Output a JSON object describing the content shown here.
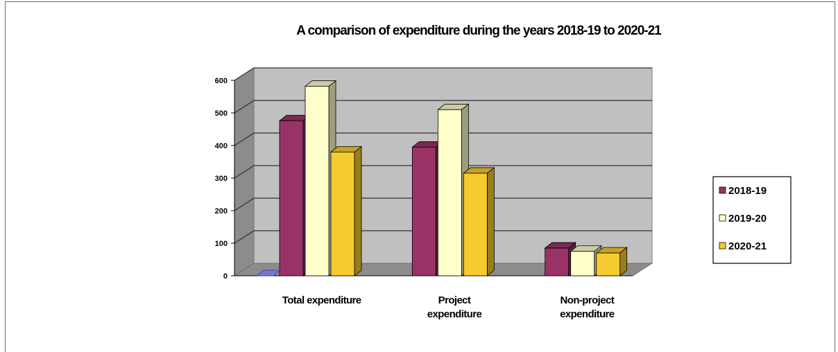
{
  "chart_data": {
    "type": "bar",
    "title": "A comparison of expenditure during the years 2018-19 to 2020-21",
    "categories": [
      [
        "Total expenditure"
      ],
      [
        "Project",
        "expenditure"
      ],
      [
        "Non-project",
        "expenditure"
      ]
    ],
    "series": [
      {
        "name": "2018-19",
        "values": [
          476,
          395,
          85
        ],
        "color": "#993366"
      },
      {
        "name": "2019-20",
        "values": [
          582,
          510,
          75
        ],
        "color": "#ffffcc"
      },
      {
        "name": "2020-21",
        "values": [
          380,
          315,
          70
        ],
        "color": "#f5cb2f"
      }
    ],
    "y_ticks": [
      "0",
      "100",
      "200",
      "300",
      "400",
      "500",
      "600"
    ],
    "ylim": [
      0,
      600
    ],
    "grid": true,
    "legend_position": "right"
  }
}
